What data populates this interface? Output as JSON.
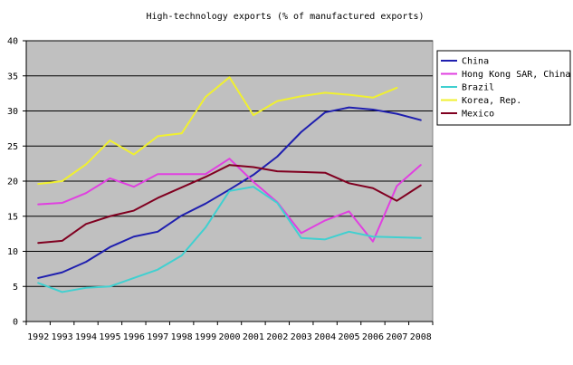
{
  "chart_data": {
    "type": "line",
    "title": "High-technology exports (% of manufactured exports)",
    "xlabel": "",
    "ylabel": "",
    "categories": [
      "1992",
      "1993",
      "1994",
      "1995",
      "1996",
      "1997",
      "1998",
      "1999",
      "2000",
      "2001",
      "2002",
      "2003",
      "2004",
      "2005",
      "2006",
      "2007",
      "2008"
    ],
    "ylim": [
      0,
      40
    ],
    "yticks": [
      0,
      5,
      10,
      15,
      20,
      25,
      30,
      35,
      40
    ],
    "grid": true,
    "legend_position": "right",
    "plot_background": "#c0c0c0",
    "series": [
      {
        "name": "China",
        "color": "#1f1faf",
        "values": [
          6.2,
          7.0,
          8.5,
          10.6,
          12.1,
          12.8,
          15.1,
          16.8,
          18.8,
          20.9,
          23.5,
          27.0,
          29.8,
          30.5,
          30.2,
          29.6,
          28.7
        ]
      },
      {
        "name": "Hong Kong SAR, China",
        "color": "#e040e0",
        "values": [
          16.7,
          16.9,
          18.3,
          20.4,
          19.2,
          21.0,
          21.0,
          21.0,
          23.2,
          19.9,
          17.0,
          12.6,
          14.4,
          15.7,
          11.4,
          19.3,
          22.3
        ]
      },
      {
        "name": "Brazil",
        "color": "#40d0d0",
        "values": [
          5.5,
          4.2,
          4.8,
          5.0,
          6.2,
          7.4,
          9.4,
          13.4,
          18.6,
          19.2,
          16.9,
          11.9,
          11.7,
          12.8,
          12.1,
          12.0,
          11.9
        ]
      },
      {
        "name": "Korea, Rep.",
        "color": "#f0f030",
        "values": [
          19.6,
          20.0,
          22.4,
          25.8,
          23.8,
          26.4,
          26.8,
          32.0,
          34.8,
          29.4,
          31.4,
          32.1,
          32.6,
          32.3,
          31.9,
          33.3,
          null
        ]
      },
      {
        "name": "Mexico",
        "color": "#800020",
        "values": [
          11.2,
          11.5,
          13.9,
          15.0,
          15.8,
          17.6,
          19.1,
          20.6,
          22.3,
          22.0,
          21.4,
          21.3,
          21.2,
          19.7,
          19.0,
          17.2,
          19.4
        ]
      }
    ]
  }
}
